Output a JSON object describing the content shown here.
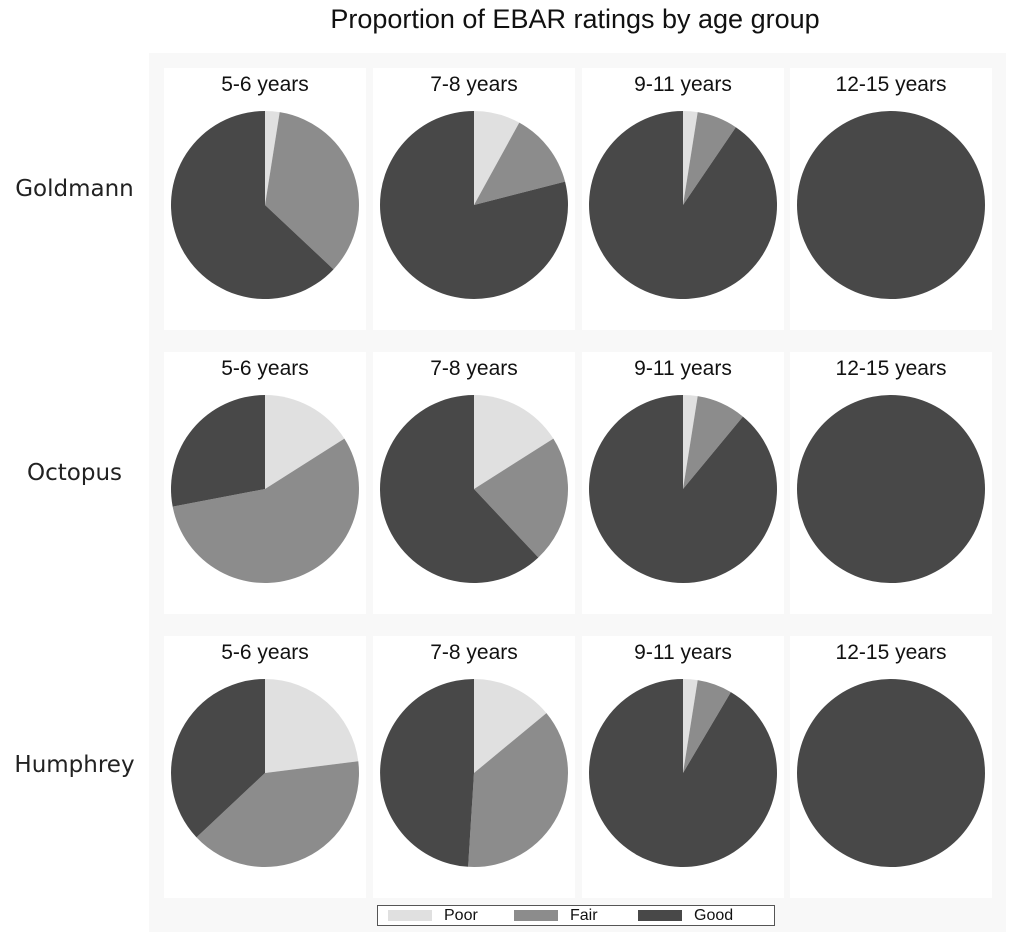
{
  "chart_data": {
    "type": "pie",
    "title": "Proportion of EBAR ratings by age group",
    "categories": [
      "Poor",
      "Fair",
      "Good"
    ],
    "colors": {
      "Poor": "#e0e0e0",
      "Fair": "#8c8c8c",
      "Good": "#484848"
    },
    "legend_position": "bottom",
    "columns": [
      "5-6 years",
      "7-8 years",
      "9-11 years",
      "12-15 years"
    ],
    "rows": [
      {
        "name": "Goldmann",
        "panels": [
          {
            "title": "5-6 years",
            "values": [
              2.5,
              34.5,
              63.0
            ]
          },
          {
            "title": "7-8 years",
            "values": [
              8.0,
              13.0,
              79.0
            ]
          },
          {
            "title": "9-11 years",
            "values": [
              2.5,
              7.0,
              90.5
            ]
          },
          {
            "title": "12-15 years",
            "values": [
              0,
              0,
              100
            ]
          }
        ]
      },
      {
        "name": "Octopus",
        "panels": [
          {
            "title": "5-6 years",
            "values": [
              16.0,
              56.0,
              28.0
            ]
          },
          {
            "title": "7-8 years",
            "values": [
              16.0,
              22.0,
              62.0
            ]
          },
          {
            "title": "9-11 years",
            "values": [
              2.5,
              8.5,
              89.0
            ]
          },
          {
            "title": "12-15 years",
            "values": [
              0,
              0,
              100
            ]
          }
        ]
      },
      {
        "name": "Humphrey",
        "panels": [
          {
            "title": "5-6 years",
            "values": [
              23.0,
              40.0,
              37.0
            ]
          },
          {
            "title": "7-8 years",
            "values": [
              14.0,
              37.0,
              49.0
            ]
          },
          {
            "title": "9-11 years",
            "values": [
              2.5,
              6.0,
              91.5
            ]
          },
          {
            "title": "12-15 years",
            "values": [
              0,
              0,
              100
            ]
          }
        ]
      }
    ]
  }
}
